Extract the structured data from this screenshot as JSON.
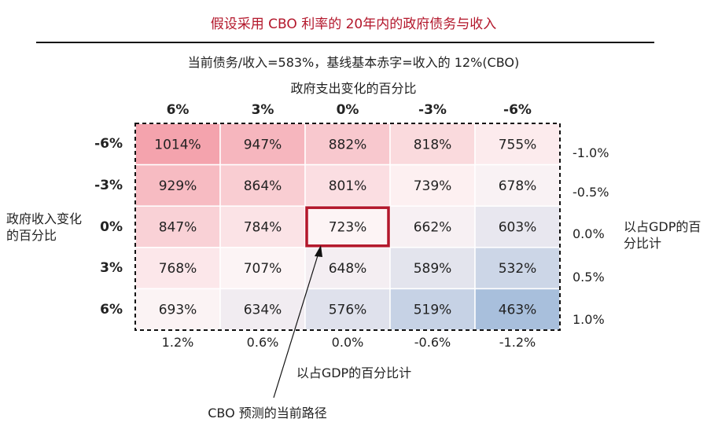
{
  "title": "假设采用 CBO 利率的 20年内的政府债务与收入",
  "subtitle": "当前债务/收入=583%，基线基本赤字=收入的 12%(CBO)",
  "top_axis_title": "政府支出变化的百分比",
  "left_axis_title": "政府收入变化的百分比",
  "right_axis_title": "以占GDP的百分比计",
  "bottom_axis_title": "以占GDP的百分比计",
  "callout_label": "CBO 预测的当前路径",
  "colors": {
    "title": "#b3172b",
    "high": "#f4a3ad",
    "mid": "#fdf4f5",
    "low": "#a8bfdc",
    "highlight_box": "#b3172b"
  },
  "chart_data": {
    "type": "heatmap",
    "columns": [
      "6%",
      "3%",
      "0%",
      "-3%",
      "-6%"
    ],
    "rows": [
      "-6%",
      "-3%",
      "0%",
      "3%",
      "6%"
    ],
    "row_gdp_labels": [
      "-1.0%",
      "-0.5%",
      "0.0%",
      "0.5%",
      "1.0%"
    ],
    "col_gdp_labels": [
      "1.2%",
      "0.6%",
      "0.0%",
      "-0.6%",
      "-1.2%"
    ],
    "values": [
      [
        1014,
        947,
        882,
        818,
        755
      ],
      [
        929,
        864,
        801,
        739,
        678
      ],
      [
        847,
        784,
        723,
        662,
        603
      ],
      [
        768,
        707,
        648,
        589,
        532
      ],
      [
        693,
        634,
        576,
        519,
        463
      ]
    ],
    "value_suffix": "%",
    "highlight": {
      "row": 2,
      "col": 2
    }
  }
}
